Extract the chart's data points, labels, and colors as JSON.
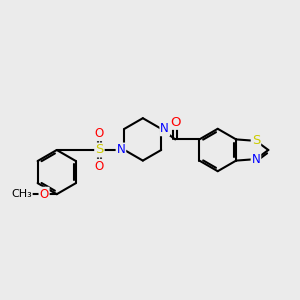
{
  "bg_color": "#ebebeb",
  "atom_colors": {
    "C": "#000000",
    "N": "#0000ff",
    "O": "#ff0000",
    "S": "#cccc00",
    "H": "#000000"
  },
  "bond_color": "#000000",
  "bond_width": 1.5,
  "font_size": 8.5
}
